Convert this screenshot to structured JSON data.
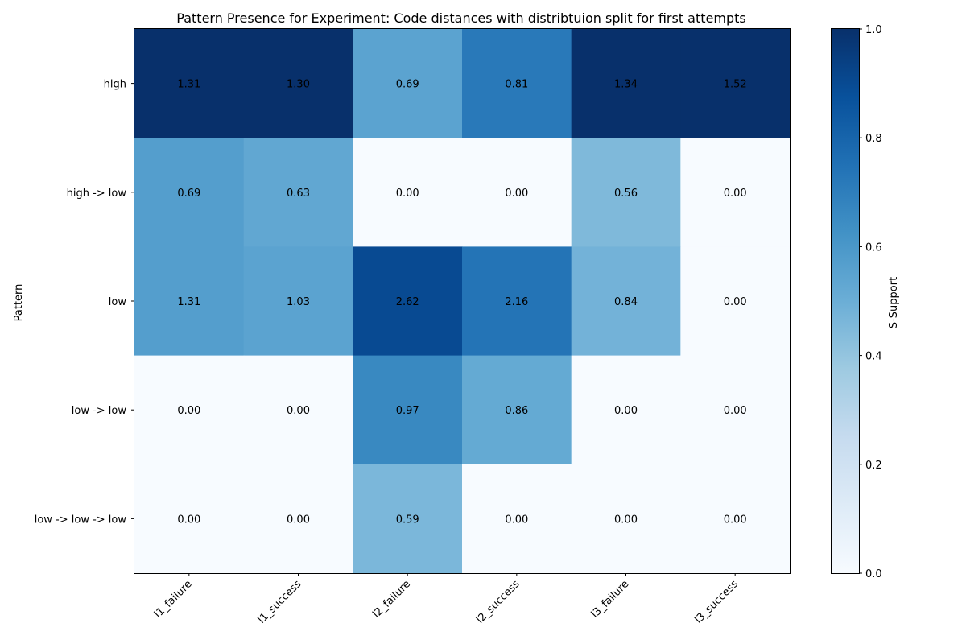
{
  "chart_data": {
    "type": "heatmap",
    "title": "Pattern Presence for Experiment: Code distances with distribtuion split for first attempts",
    "xlabel": "",
    "ylabel": "Pattern",
    "x_categories": [
      "l1_failure",
      "l1_success",
      "l2_failure",
      "l2_success",
      "l3_failure",
      "l3_success"
    ],
    "y_categories": [
      "high",
      "high -> low",
      "low",
      "low -> low",
      "low -> low -> low"
    ],
    "color_values": [
      [
        1.0,
        1.0,
        0.55,
        0.72,
        1.0,
        1.0
      ],
      [
        0.57,
        0.53,
        0.0,
        0.0,
        0.45,
        0.0
      ],
      [
        0.57,
        0.55,
        0.9,
        0.74,
        0.48,
        0.0
      ],
      [
        0.0,
        0.0,
        0.66,
        0.52,
        0.0,
        0.0
      ],
      [
        0.0,
        0.0,
        0.46,
        0.0,
        0.0,
        0.0
      ]
    ],
    "cell_labels": [
      [
        "1.31",
        "1.30",
        "0.69",
        "0.81",
        "1.34",
        "1.52"
      ],
      [
        "0.69",
        "0.63",
        "0.00",
        "0.00",
        "0.56",
        "0.00"
      ],
      [
        "1.31",
        "1.03",
        "2.62",
        "2.16",
        "0.84",
        "0.00"
      ],
      [
        "0.00",
        "0.00",
        "0.97",
        "0.86",
        "0.00",
        "0.00"
      ],
      [
        "0.00",
        "0.00",
        "0.59",
        "0.00",
        "0.00",
        "0.00"
      ]
    ],
    "colorbar": {
      "label": "S-Support",
      "range": [
        0.0,
        1.0
      ],
      "ticks": [
        "0.0",
        "0.2",
        "0.4",
        "0.6",
        "0.8",
        "1.0"
      ],
      "colormap": "Blues"
    },
    "grid": false,
    "legend": "none"
  }
}
